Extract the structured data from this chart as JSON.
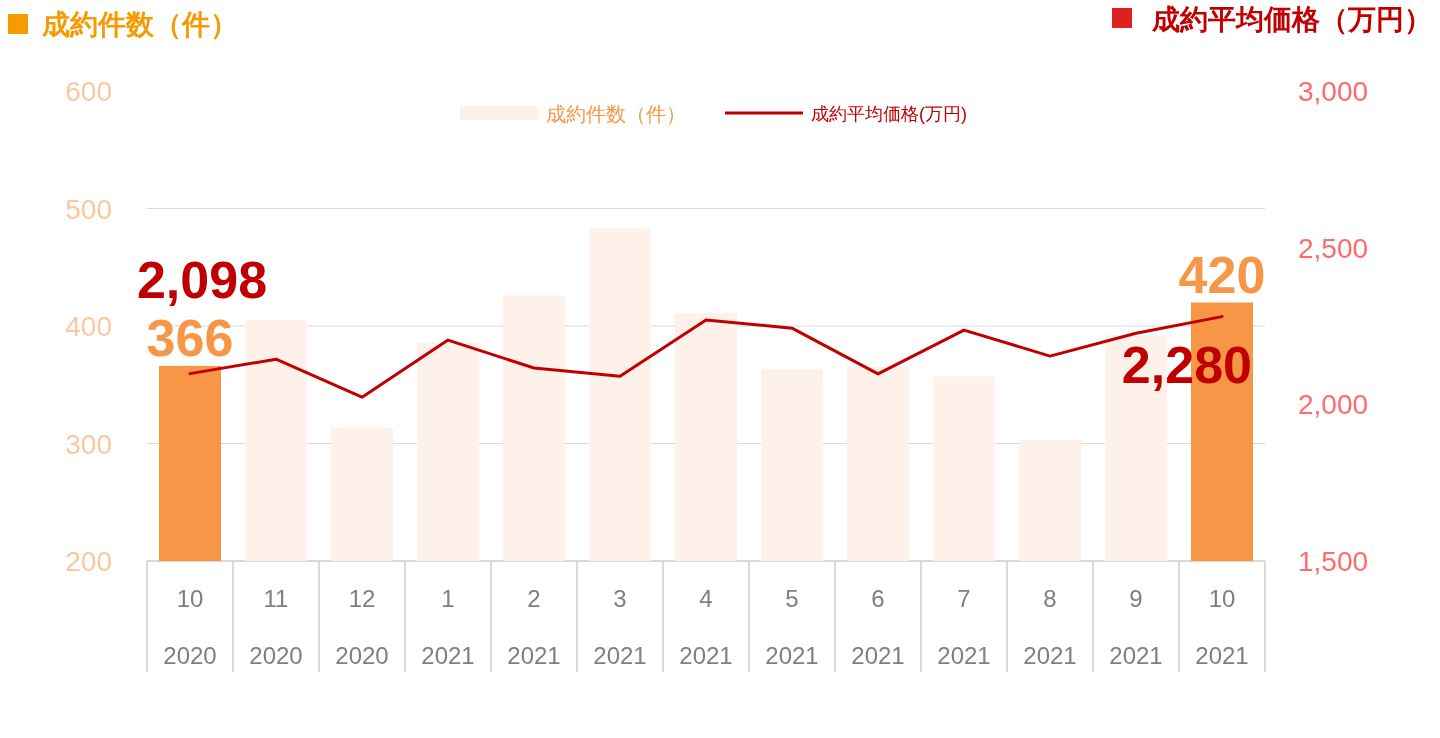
{
  "chart_data": {
    "type": "bar",
    "ylabel": "成約件数（件）",
    "y2label": "成約平均価格（万円）",
    "categories": [
      "10\n2020",
      "11\n2020",
      "12\n2020",
      "1\n2021",
      "2\n2021",
      "3\n2021",
      "4\n2021",
      "5\n2021",
      "6\n2021",
      "7\n2021",
      "8\n2021",
      "9\n2021",
      "10\n2021"
    ],
    "ylim": [
      200,
      600
    ],
    "yticks": [
      200,
      300,
      400,
      500,
      600
    ],
    "y2lim": [
      1500,
      3000
    ],
    "y2ticks": [
      {
        "value": 1500,
        "label": "1,500"
      },
      {
        "value": 2000,
        "label": "2,000"
      },
      {
        "value": 2500,
        "label": "2,500"
      },
      {
        "value": 3000,
        "label": "3,000"
      }
    ],
    "grid": "y",
    "legend": "top",
    "series": [
      {
        "name": "成約件数（件）",
        "color": "#fdf1e9",
        "colors": [
          "#f79646",
          "#fdf1e9",
          "#fdf1e9",
          "#fdf1e9",
          "#fdf1e9",
          "#fdf1e9",
          "#fdf1e9",
          "#fdf1e9",
          "#fdf1e9",
          "#fdf1e9",
          "#fdf1e9",
          "#fdf1e9",
          "#f79646"
        ],
        "values": [
          366,
          405,
          313,
          386,
          426,
          483,
          411,
          363,
          365,
          357,
          303,
          392,
          420
        ],
        "value_labels": [
          "366",
          null,
          null,
          null,
          null,
          null,
          null,
          null,
          null,
          null,
          null,
          null,
          "420"
        ]
      },
      {
        "name": "成約平均価格(万円)",
        "type": "line",
        "axis": "y2",
        "color": "#c00000",
        "values": [
          2098,
          2144,
          2023,
          2205,
          2116,
          2090,
          2269,
          2243,
          2097,
          2237,
          2154,
          2227,
          2280
        ],
        "value_labels": [
          "2,098",
          null,
          null,
          null,
          null,
          null,
          null,
          null,
          null,
          null,
          null,
          null,
          "2,280"
        ]
      }
    ]
  }
}
